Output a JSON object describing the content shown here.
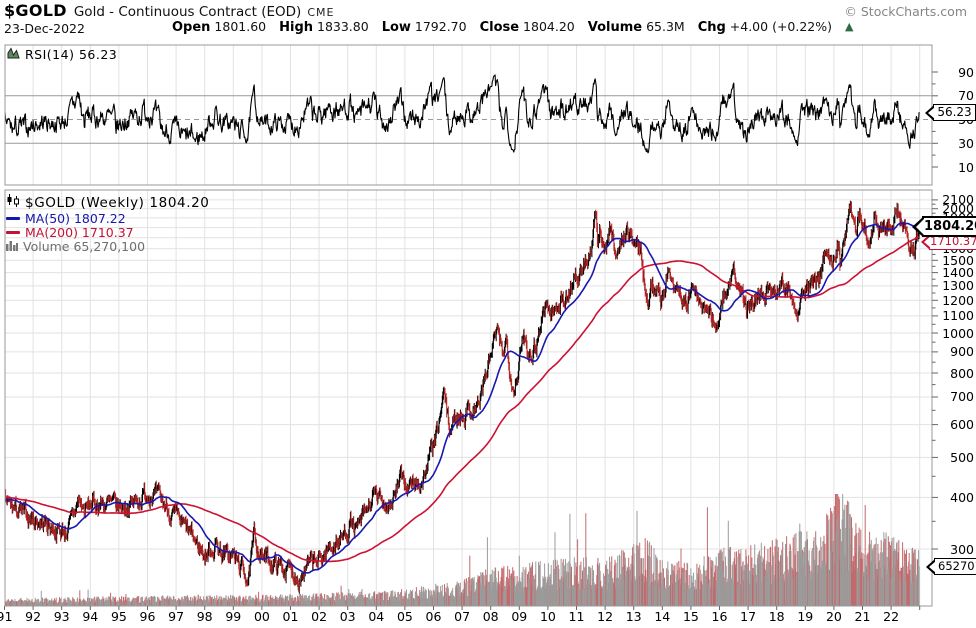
{
  "header": {
    "symbol": "$GOLD",
    "title": "Gold - Continuous Contract (EOD)",
    "exchange": "CME",
    "credit": "© StockCharts.com",
    "date": "23-Dec-2022",
    "quote": [
      {
        "label": "Open",
        "value": "1801.60"
      },
      {
        "label": "High",
        "value": "1833.80"
      },
      {
        "label": "Low",
        "value": "1792.70"
      },
      {
        "label": "Close",
        "value": "1804.20"
      },
      {
        "label": "Volume",
        "value": "65.3M"
      },
      {
        "label": "Chg",
        "value": "+4.00 (+0.22%)"
      }
    ],
    "change_direction": "up",
    "up_arrow": "▲",
    "arrow_color": "#2d6a3f"
  },
  "rsi_panel": {
    "legend": "RSI(14) 56.23",
    "pointer": "56.23",
    "y_ticks": [
      90,
      70,
      50,
      30,
      10
    ],
    "overbought": 70,
    "midline": 50,
    "oversold": 30
  },
  "main_panel": {
    "legend_price": "$GOLD (Weekly) 1804.20",
    "legend_ma50": "MA(50) 1807.22",
    "legend_ma200": "MA(200) 1710.37",
    "legend_volume": "Volume 65,270,100",
    "pointer_price": "1804.20",
    "pointer_ma200": "1710.37",
    "pointer_volume": "65270100",
    "y_ticks": [
      2100,
      2000,
      1900,
      1800,
      1700,
      1600,
      1500,
      1400,
      1300,
      1200,
      1100,
      1000,
      900,
      800,
      700,
      600,
      500,
      400,
      300
    ]
  },
  "x_axis": {
    "labels": [
      "91",
      "92",
      "93",
      "94",
      "95",
      "96",
      "97",
      "98",
      "99",
      "00",
      "01",
      "02",
      "03",
      "04",
      "05",
      "06",
      "07",
      "08",
      "09",
      "10",
      "11",
      "12",
      "13",
      "14",
      "15",
      "16",
      "17",
      "18",
      "19",
      "20",
      "21",
      "22"
    ]
  },
  "colors": {
    "candle_up": "#000000",
    "candle_down": "#b02424",
    "ma50": "#1818b0",
    "ma200": "#cc1133",
    "rsi_line": "#000000",
    "volume_down": "#c4686b",
    "volume_up": "#9b9b9b",
    "grid": "#e2e2e2",
    "rsi_band": "#999999",
    "frame": "#999999",
    "tick": "#666666"
  },
  "chart_data": {
    "type": "candlestick",
    "symbol": "$GOLD",
    "timeframe": "Weekly",
    "title": "Gold - Continuous Contract (EOD) CME",
    "as_of": "23-Dec-2022",
    "ohlc_last": {
      "open": 1801.6,
      "high": 1833.8,
      "low": 1792.7,
      "close": 1804.2,
      "volume": 65270100,
      "change": 4.0,
      "change_pct": 0.22
    },
    "indicators": {
      "rsi14_last": 56.23,
      "ma50_last": 1807.22,
      "ma200_last": 1710.37
    },
    "x_range_years": [
      1991,
      2023
    ],
    "y_axis": {
      "scale": "log",
      "ticks": [
        2100,
        2000,
        1900,
        1800,
        1700,
        1600,
        1500,
        1400,
        1300,
        1200,
        1100,
        1000,
        900,
        800,
        700,
        600,
        500,
        400,
        300
      ]
    },
    "rsi_ticks": [
      90,
      70,
      50,
      30,
      10
    ],
    "legend_position": "top-left",
    "grid": true,
    "weekly_close_anchors": [
      [
        1987.0,
        430
      ],
      [
        1988.0,
        410
      ],
      [
        1989.0,
        390
      ],
      [
        1990.0,
        383
      ],
      [
        1991.0,
        390
      ],
      [
        1991.5,
        368
      ],
      [
        1992.0,
        355
      ],
      [
        1992.5,
        345
      ],
      [
        1993.0,
        330
      ],
      [
        1993.25,
        337
      ],
      [
        1993.6,
        395
      ],
      [
        1993.8,
        370
      ],
      [
        1994.0,
        385
      ],
      [
        1994.5,
        387
      ],
      [
        1995.0,
        378
      ],
      [
        1995.5,
        387
      ],
      [
        1996.1,
        415
      ],
      [
        1996.5,
        390
      ],
      [
        1997.0,
        355
      ],
      [
        1997.5,
        325
      ],
      [
        1998.0,
        290
      ],
      [
        1998.4,
        308
      ],
      [
        1998.7,
        290
      ],
      [
        1999.0,
        288
      ],
      [
        1999.55,
        255
      ],
      [
        1999.73,
        320
      ],
      [
        2000.0,
        288
      ],
      [
        2000.4,
        278
      ],
      [
        2000.8,
        270
      ],
      [
        2001.0,
        266
      ],
      [
        2001.3,
        258
      ],
      [
        2001.7,
        275
      ],
      [
        2002.0,
        280
      ],
      [
        2002.4,
        305
      ],
      [
        2002.8,
        318
      ],
      [
        2003.1,
        350
      ],
      [
        2003.3,
        330
      ],
      [
        2003.9,
        400
      ],
      [
        2004.3,
        390
      ],
      [
        2004.5,
        388
      ],
      [
        2004.9,
        445
      ],
      [
        2005.1,
        425
      ],
      [
        2005.6,
        435
      ],
      [
        2005.9,
        510
      ],
      [
        2006.1,
        555
      ],
      [
        2006.38,
        715
      ],
      [
        2006.55,
        585
      ],
      [
        2006.8,
        625
      ],
      [
        2007.0,
        640
      ],
      [
        2007.4,
        660
      ],
      [
        2007.6,
        680
      ],
      [
        2007.85,
        800
      ],
      [
        2008.2,
        1000
      ],
      [
        2008.4,
        900
      ],
      [
        2008.55,
        960
      ],
      [
        2008.8,
        730
      ],
      [
        2009.05,
        880
      ],
      [
        2009.15,
        995
      ],
      [
        2009.35,
        900
      ],
      [
        2009.6,
        950
      ],
      [
        2009.92,
        1190
      ],
      [
        2010.1,
        1110
      ],
      [
        2010.25,
        1130
      ],
      [
        2010.45,
        1220
      ],
      [
        2010.6,
        1180
      ],
      [
        2010.95,
        1400
      ],
      [
        2011.1,
        1350
      ],
      [
        2011.35,
        1500
      ],
      [
        2011.5,
        1530
      ],
      [
        2011.66,
        1900
      ],
      [
        2011.75,
        1630
      ],
      [
        2011.85,
        1790
      ],
      [
        2012.0,
        1600
      ],
      [
        2012.17,
        1780
      ],
      [
        2012.4,
        1580
      ],
      [
        2012.55,
        1620
      ],
      [
        2012.75,
        1790
      ],
      [
        2013.0,
        1660
      ],
      [
        2013.25,
        1600
      ],
      [
        2013.33,
        1400
      ],
      [
        2013.5,
        1230
      ],
      [
        2013.65,
        1340
      ],
      [
        2013.95,
        1200
      ],
      [
        2014.2,
        1390
      ],
      [
        2014.5,
        1300
      ],
      [
        2014.75,
        1220
      ],
      [
        2014.85,
        1150
      ],
      [
        2015.05,
        1290
      ],
      [
        2015.3,
        1180
      ],
      [
        2015.65,
        1100
      ],
      [
        2015.95,
        1060
      ],
      [
        2016.15,
        1240
      ],
      [
        2016.5,
        1370
      ],
      [
        2016.75,
        1250
      ],
      [
        2016.95,
        1130
      ],
      [
        2017.1,
        1200
      ],
      [
        2017.3,
        1250
      ],
      [
        2017.5,
        1220
      ],
      [
        2017.7,
        1290
      ],
      [
        2017.95,
        1280
      ],
      [
        2018.1,
        1350
      ],
      [
        2018.3,
        1320
      ],
      [
        2018.6,
        1200
      ],
      [
        2018.75,
        1180
      ],
      [
        2019.0,
        1290
      ],
      [
        2019.15,
        1300
      ],
      [
        2019.35,
        1275
      ],
      [
        2019.55,
        1420
      ],
      [
        2019.7,
        1520
      ],
      [
        2019.85,
        1470
      ],
      [
        2020.0,
        1560
      ],
      [
        2020.15,
        1680
      ],
      [
        2020.22,
        1480
      ],
      [
        2020.45,
        1750
      ],
      [
        2020.58,
        2070
      ],
      [
        2020.75,
        1860
      ],
      [
        2020.9,
        1950
      ],
      [
        2021.0,
        1850
      ],
      [
        2021.2,
        1680
      ],
      [
        2021.4,
        1900
      ],
      [
        2021.55,
        1760
      ],
      [
        2021.7,
        1820
      ],
      [
        2021.85,
        1780
      ],
      [
        2022.0,
        1830
      ],
      [
        2022.1,
        1870
      ],
      [
        2022.17,
        2050
      ],
      [
        2022.3,
        1930
      ],
      [
        2022.45,
        1810
      ],
      [
        2022.55,
        1720
      ],
      [
        2022.7,
        1650
      ],
      [
        2022.83,
        1630
      ],
      [
        2022.9,
        1750
      ],
      [
        2022.98,
        1804.2
      ]
    ],
    "volume_anchors_millions": [
      [
        1987.0,
        8
      ],
      [
        1991.0,
        9
      ],
      [
        1994.0,
        11
      ],
      [
        1996.0,
        12
      ],
      [
        1998.0,
        13
      ],
      [
        2000.0,
        13
      ],
      [
        2002.0,
        15
      ],
      [
        2004.0,
        18
      ],
      [
        2005.0,
        20
      ],
      [
        2006.0,
        26
      ],
      [
        2007.0,
        30
      ],
      [
        2008.0,
        46
      ],
      [
        2009.0,
        50
      ],
      [
        2010.0,
        54
      ],
      [
        2011.0,
        58
      ],
      [
        2012.0,
        56
      ],
      [
        2013.0,
        72
      ],
      [
        2013.4,
        85
      ],
      [
        2014.0,
        55
      ],
      [
        2015.0,
        52
      ],
      [
        2016.0,
        68
      ],
      [
        2017.0,
        72
      ],
      [
        2018.0,
        80
      ],
      [
        2019.0,
        90
      ],
      [
        2019.9,
        115
      ],
      [
        2020.15,
        165
      ],
      [
        2020.3,
        140
      ],
      [
        2020.6,
        115
      ],
      [
        2021.0,
        88
      ],
      [
        2021.6,
        92
      ],
      [
        2022.0,
        82
      ],
      [
        2022.98,
        65.27
      ]
    ],
    "series_seed": 7
  }
}
